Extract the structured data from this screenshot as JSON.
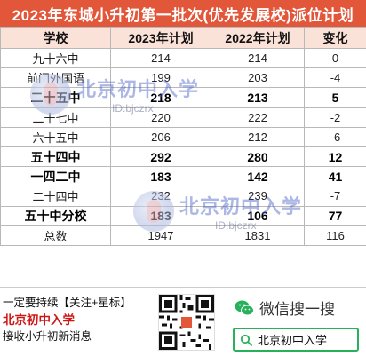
{
  "title": "2023年东城小升初第一批次(优先发展校)派位计划",
  "table": {
    "headers": [
      "学校",
      "2023年计划",
      "2022年计划",
      "变化"
    ],
    "rows": [
      {
        "school": "九十六中",
        "y2023": "214",
        "y2022": "214",
        "change": "0",
        "bold": false
      },
      {
        "school": "前门外国语",
        "y2023": "199",
        "y2022": "203",
        "change": "-4",
        "bold": false
      },
      {
        "school": "二十五中",
        "y2023": "218",
        "y2022": "213",
        "change": "5",
        "bold": true
      },
      {
        "school": "二十七中",
        "y2023": "220",
        "y2022": "222",
        "change": "-2",
        "bold": false
      },
      {
        "school": "六十五中",
        "y2023": "206",
        "y2022": "212",
        "change": "-6",
        "bold": false
      },
      {
        "school": "五十四中",
        "y2023": "292",
        "y2022": "280",
        "change": "12",
        "bold": true
      },
      {
        "school": "一四二中",
        "y2023": "183",
        "y2022": "142",
        "change": "41",
        "bold": true
      },
      {
        "school": "二十四中",
        "y2023": "232",
        "y2022": "239",
        "change": "-7",
        "bold": false
      },
      {
        "school": "五十中分校",
        "y2023": "183",
        "y2022": "106",
        "change": "77",
        "bold": true
      },
      {
        "school": "总数",
        "y2023": "1947",
        "y2022": "1831",
        "change": "116",
        "bold": false
      }
    ]
  },
  "watermark": {
    "title": "北京初中入学",
    "sub": "ID:bjczrx"
  },
  "footer": {
    "follow": "一定要持续【关注+星标】",
    "brand": "北京初中入学",
    "receive": "接收小升初新消息",
    "wechat_label": "微信搜一搜",
    "search_text": "北京初中入学"
  },
  "colors": {
    "title_bg": "#e2563a",
    "header_bg": "#fbe2d8",
    "brand_red": "#d01515",
    "wechat_green": "#27b15a"
  },
  "icons": [
    "qr-code-icon",
    "wechat-icon",
    "search-icon",
    "watermark-logo-icon"
  ]
}
